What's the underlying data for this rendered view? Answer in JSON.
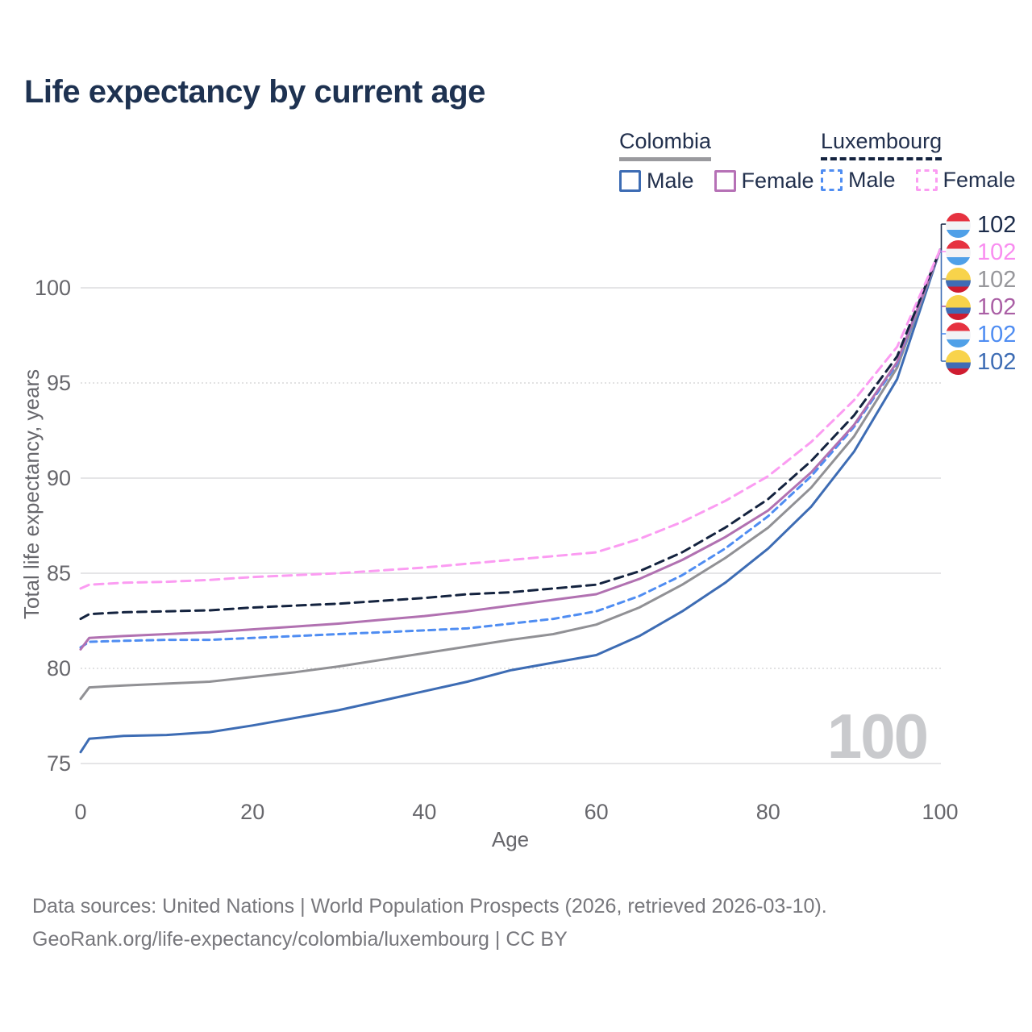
{
  "header": {
    "title": "Life expectancy by current age"
  },
  "legend": {
    "colombia": {
      "title": "Colombia",
      "male": "Male",
      "female": "Female"
    },
    "luxembourg": {
      "title": "Luxembourg",
      "male": "Male",
      "female": "Female"
    }
  },
  "footer": {
    "line1": "Data sources: United Nations | World Population Prospects (2026, retrieved 2026-03-10).",
    "line2": "GeoRank.org/life-expectancy/colombia/luxembourg | CC BY"
  },
  "watermark": "100",
  "palette": {
    "title_navy": "#1e3251",
    "tick_gray": "#67676c",
    "grid_solid": "#e5e5e7",
    "grid_dotted": "#d8d8da",
    "legend_underline_colombia": "#9a9a9e",
    "legend_underline_luxembourg": "#14233f"
  },
  "chart_data": {
    "type": "line",
    "title": "Life expectancy by current age",
    "xlabel": "Age",
    "ylabel": "Total life expectancy, years",
    "xlim": [
      0,
      100
    ],
    "ylim": [
      74.5,
      103
    ],
    "x_ticks": [
      0,
      20,
      40,
      60,
      80,
      100
    ],
    "y_ticks": [
      {
        "value": 75,
        "style": "solid"
      },
      {
        "value": 80,
        "style": "dotted"
      },
      {
        "value": 85,
        "style": "solid"
      },
      {
        "value": 90,
        "style": "solid"
      },
      {
        "value": 95,
        "style": "dotted"
      },
      {
        "value": 100,
        "style": "solid"
      }
    ],
    "grid": true,
    "legend_position": "top-right",
    "ages": [
      0,
      1,
      5,
      10,
      15,
      20,
      25,
      30,
      35,
      40,
      45,
      50,
      55,
      60,
      65,
      70,
      75,
      80,
      85,
      90,
      95,
      100
    ],
    "series": [
      {
        "name": "Colombia Male",
        "id": "co-male",
        "color": "#3d6cb4",
        "dash": null,
        "width": 3,
        "values": [
          75.6,
          76.3,
          76.45,
          76.5,
          76.65,
          77.0,
          77.4,
          77.8,
          78.3,
          78.8,
          79.3,
          79.9,
          80.3,
          80.7,
          81.7,
          83.0,
          84.5,
          86.3,
          88.5,
          91.4,
          95.2,
          102
        ]
      },
      {
        "name": "Colombia Both sexes",
        "id": "co-both",
        "color": "#919195",
        "dash": null,
        "width": 3,
        "values": [
          78.4,
          79.0,
          79.1,
          79.2,
          79.3,
          79.55,
          79.8,
          80.1,
          80.45,
          80.8,
          81.15,
          81.5,
          81.8,
          82.3,
          83.2,
          84.4,
          85.8,
          87.4,
          89.5,
          92.2,
          95.8,
          102
        ]
      },
      {
        "name": "Luxembourg Male",
        "id": "lu-male",
        "color": "#4f8df2",
        "dash": "8 6",
        "width": 3,
        "values": [
          81.1,
          81.4,
          81.45,
          81.5,
          81.5,
          81.6,
          81.7,
          81.8,
          81.9,
          82.0,
          82.1,
          82.35,
          82.6,
          83.0,
          83.8,
          84.9,
          86.3,
          88.0,
          90.1,
          92.7,
          96.0,
          102
        ]
      },
      {
        "name": "Colombia Female",
        "id": "co-female",
        "color": "#b171b1",
        "dash": null,
        "width": 3,
        "values": [
          81.0,
          81.6,
          81.7,
          81.8,
          81.9,
          82.05,
          82.2,
          82.35,
          82.55,
          82.75,
          83.0,
          83.3,
          83.6,
          83.9,
          84.7,
          85.7,
          86.9,
          88.3,
          90.3,
          92.8,
          96.1,
          102
        ]
      },
      {
        "name": "Luxembourg Both sexes",
        "id": "lu-both",
        "color": "#14233f",
        "dash": "11 7",
        "width": 3,
        "values": [
          82.6,
          82.85,
          82.95,
          83.0,
          83.05,
          83.2,
          83.3,
          83.4,
          83.55,
          83.7,
          83.9,
          84.0,
          84.2,
          84.4,
          85.1,
          86.1,
          87.4,
          88.9,
          90.9,
          93.3,
          96.4,
          102
        ]
      },
      {
        "name": "Luxembourg Female",
        "id": "lu-female",
        "color": "#fb9cf2",
        "dash": "11 7",
        "width": 3,
        "values": [
          84.2,
          84.4,
          84.5,
          84.55,
          84.65,
          84.8,
          84.9,
          85.0,
          85.15,
          85.3,
          85.5,
          85.7,
          85.9,
          86.1,
          86.8,
          87.7,
          88.8,
          90.1,
          91.9,
          94.1,
          96.9,
          102
        ]
      }
    ],
    "end_labels": [
      {
        "flag": "luxembourg",
        "value": "102",
        "color": "#1b2b4a"
      },
      {
        "flag": "luxembourg",
        "value": "102",
        "color": "#f98df0"
      },
      {
        "flag": "colombia",
        "value": "102",
        "color": "#97979b"
      },
      {
        "flag": "colombia",
        "value": "102",
        "color": "#aa5fa5"
      },
      {
        "flag": "luxembourg",
        "value": "102",
        "color": "#4f8df2"
      },
      {
        "flag": "colombia",
        "value": "102",
        "color": "#3d6cb4"
      }
    ],
    "flag_colors": {
      "colombia": {
        "yellow": "#f8d34b",
        "blue": "#3f6cb5",
        "red": "#cf1c30"
      },
      "luxembourg": {
        "red": "#e63240",
        "white": "#f2f3f5",
        "blue": "#4fa0e8"
      }
    }
  }
}
